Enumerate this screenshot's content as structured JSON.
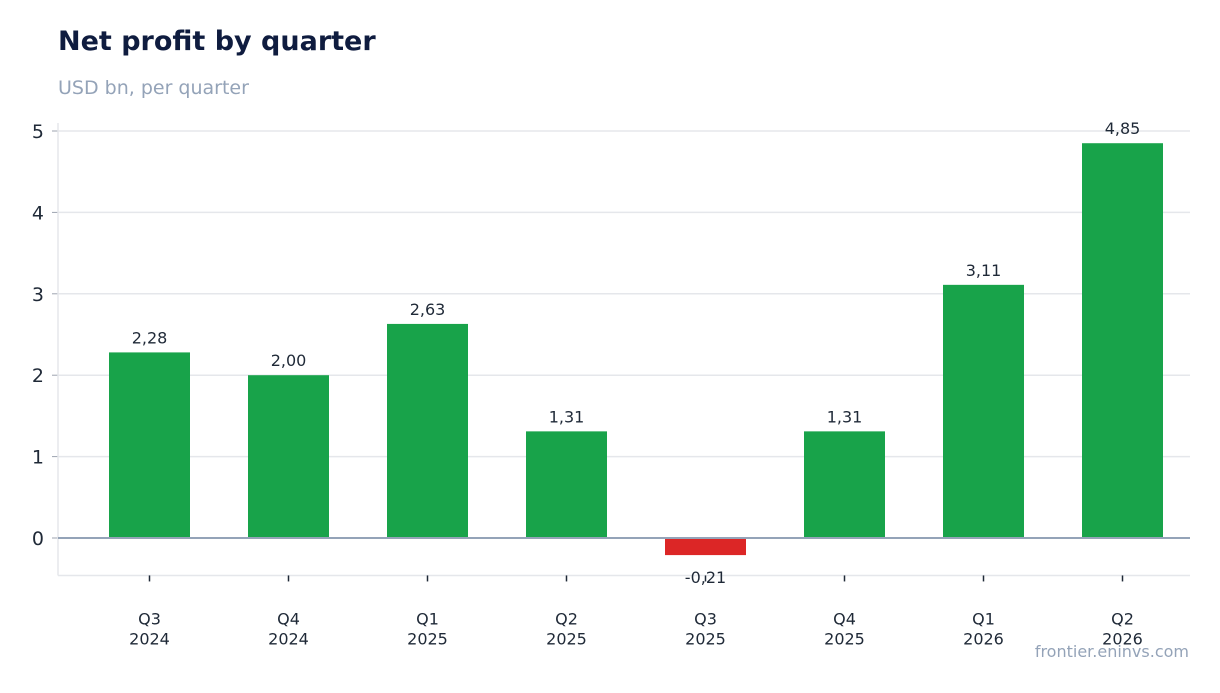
{
  "header": {
    "title": "Net profit by quarter",
    "subtitle": "USD bn, per quarter"
  },
  "footer": {
    "source": "frontier.eninvs.com"
  },
  "colors": {
    "positive": "#18a34a",
    "negative": "#dc2626",
    "grid": "#e5e7eb",
    "zero_line": "#94a3b8"
  },
  "chart_data": {
    "type": "bar",
    "title": "Net profit by quarter",
    "subtitle": "USD bn, per quarter",
    "xlabel": "",
    "ylabel": "",
    "categories": [
      [
        "Q3",
        "2024"
      ],
      [
        "Q4",
        "2024"
      ],
      [
        "Q1",
        "2025"
      ],
      [
        "Q2",
        "2025"
      ],
      [
        "Q3",
        "2025"
      ],
      [
        "Q4",
        "2025"
      ],
      [
        "Q1",
        "2026"
      ],
      [
        "Q2",
        "2026"
      ]
    ],
    "values": [
      2.28,
      2.0,
      2.63,
      1.31,
      -0.21,
      1.31,
      3.11,
      4.85
    ],
    "value_labels": [
      "2,28",
      "2,00",
      "2,63",
      "1,31",
      "-0,21",
      "1,31",
      "3,11",
      "4,85"
    ],
    "y_ticks": [
      0,
      1,
      2,
      3,
      4,
      5
    ],
    "ylim": [
      -0.46,
      5.1
    ],
    "grid": true
  }
}
